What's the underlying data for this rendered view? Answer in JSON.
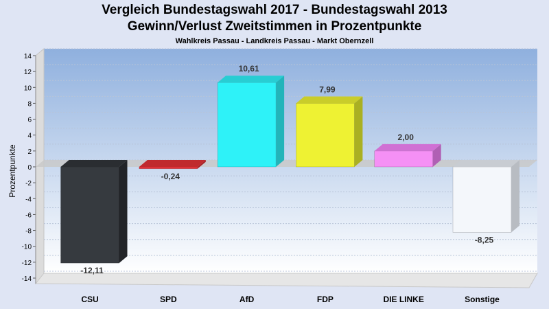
{
  "chart_data": {
    "type": "bar",
    "title": "Vergleich Bundestagswahl 2017 - Bundestagswahl 2013",
    "subtitle": "Gewinn/Verlust Zweitstimmen in Prozentpunkte",
    "caption": "Wahlkreis Passau - Landkreis Passau - Markt Obernzell",
    "xlabel": "",
    "ylabel": "Prozentpunkte",
    "ylim": [
      -14,
      14
    ],
    "yticks": [
      14,
      12,
      10,
      8,
      6,
      4,
      2,
      0,
      -2,
      -4,
      -6,
      -8,
      -10,
      -12,
      -14
    ],
    "grid": true,
    "categories": [
      "CSU",
      "SPD",
      "AfD",
      "FDP",
      "DIE LINKE",
      "Sonstige"
    ],
    "values": [
      -12.11,
      -0.24,
      10.61,
      7.99,
      2.0,
      -8.25
    ],
    "value_labels": [
      "-12,11",
      "-0,24",
      "10,61",
      "7,99",
      "2,00",
      "-8,25"
    ],
    "colors": [
      "#363a3f",
      "#e8333a",
      "#2ef2f8",
      "#eef233",
      "#f590f5",
      "#f4f7fb"
    ],
    "side_colors": [
      "#222428",
      "#a82226",
      "#22b4ba",
      "#aab022",
      "#b060b4",
      "#b8bcc2"
    ],
    "top_colors": [
      "#2a2d31",
      "#c02a2e",
      "#28cdd3",
      "#c9cd2a",
      "#d070d4",
      "#c8ccd2"
    ]
  }
}
